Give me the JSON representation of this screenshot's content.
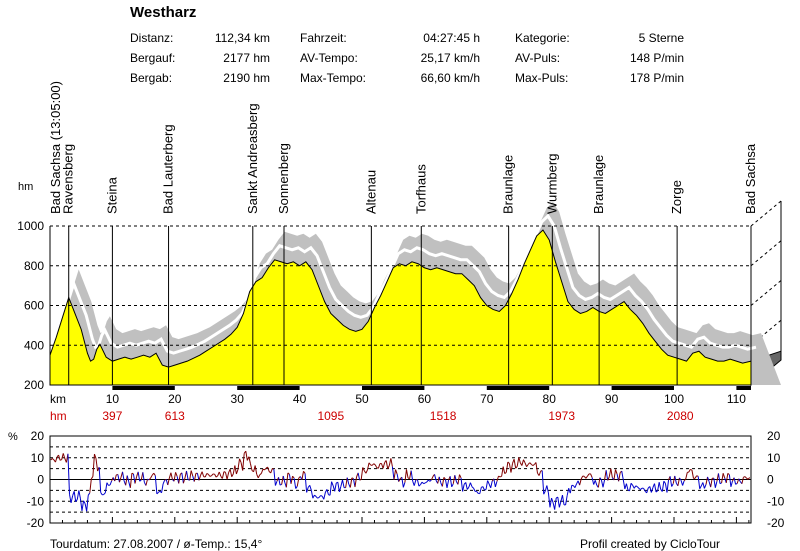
{
  "title": "Westharz",
  "stats": [
    {
      "label": "Distanz:",
      "value": "112,34 km"
    },
    {
      "label": "Bergauf:",
      "value": "2177 hm"
    },
    {
      "label": "Bergab:",
      "value": "2190 hm"
    },
    {
      "label": "Fahrzeit:",
      "value": "04:27:45 h"
    },
    {
      "label": "AV-Tempo:",
      "value": "25,17 km/h"
    },
    {
      "label": "Max-Tempo:",
      "value": "66,60 km/h"
    },
    {
      "label": "Kategorie:",
      "value": "5 Sterne"
    },
    {
      "label": "AV-Puls:",
      "value": "148 P/min"
    },
    {
      "label": "Max-Puls:",
      "value": "178 P/min"
    }
  ],
  "footer": {
    "left": "Tourdatum: 27.08.2007  /  ø-Temp.: 15,4°",
    "right": "Profil created by CicloTour"
  },
  "colors": {
    "profile_fill": "#ffff00",
    "shadow": "#c0c0c0",
    "climb": "#800000",
    "descent": "#0000cc",
    "ascent_label": "#cc0000"
  },
  "chart_data": [
    {
      "type": "area",
      "ylabel": "hm",
      "xlabel": "km",
      "xlim": [
        0,
        112.34
      ],
      "ylim": [
        200,
        1000
      ],
      "x_ticks": [
        10,
        20,
        30,
        40,
        50,
        60,
        70,
        80,
        90,
        100,
        110
      ],
      "y_ticks": [
        200,
        400,
        600,
        800,
        1000
      ],
      "ascent_row_label": "hm",
      "cumulative_ascent": [
        {
          "km": 10,
          "label": "397"
        },
        {
          "km": 20,
          "label": "613"
        },
        {
          "km": 45,
          "label": "1095"
        },
        {
          "km": 63,
          "label": "1518"
        },
        {
          "km": 82,
          "label": "1973"
        },
        {
          "km": 101,
          "label": "2080"
        }
      ],
      "waypoints": [
        {
          "km": 0,
          "name": "Bad Sachsa (13:05:00)"
        },
        {
          "km": 3,
          "name": "Ravensberg"
        },
        {
          "km": 10,
          "name": "Steina"
        },
        {
          "km": 19,
          "name": "Bad Lauterberg"
        },
        {
          "km": 32.5,
          "name": "Sankt Andreasberg"
        },
        {
          "km": 37.5,
          "name": "Sonnenberg"
        },
        {
          "km": 51.5,
          "name": "Altenau"
        },
        {
          "km": 59.5,
          "name": "Torfhaus"
        },
        {
          "km": 73.5,
          "name": "Braunlage"
        },
        {
          "km": 80.5,
          "name": "Wurmberg"
        },
        {
          "km": 88,
          "name": "Braunlage"
        },
        {
          "km": 100.5,
          "name": "Zorge"
        },
        {
          "km": 112.34,
          "name": "Bad Sachsa"
        }
      ],
      "x": [
        0,
        1,
        2,
        3,
        4,
        5,
        6,
        6.5,
        7,
        7.5,
        8,
        9,
        10,
        11,
        12,
        13,
        14,
        15,
        16,
        17,
        18,
        19,
        20,
        21,
        22,
        23,
        24,
        25,
        26,
        27,
        28,
        29,
        30,
        31,
        32,
        33,
        34,
        35,
        36,
        37,
        38,
        39,
        40,
        41,
        42,
        43,
        44,
        45,
        46,
        47,
        48,
        49,
        50,
        51,
        52,
        53,
        54,
        55,
        56,
        57,
        58,
        59,
        60,
        61,
        62,
        63,
        64,
        65,
        66,
        67,
        68,
        69,
        70,
        71,
        72,
        73,
        74,
        75,
        76,
        77,
        78,
        79,
        80,
        81,
        82,
        83,
        84,
        85,
        86,
        87,
        88,
        89,
        90,
        91,
        92,
        93,
        94,
        95,
        96,
        97,
        98,
        99,
        100,
        101,
        102,
        103,
        104,
        105,
        106,
        107,
        108,
        109,
        110,
        111,
        112.34
      ],
      "elevation": [
        350,
        440,
        540,
        640,
        560,
        480,
        360,
        320,
        330,
        380,
        405,
        340,
        320,
        330,
        340,
        330,
        340,
        350,
        340,
        360,
        300,
        290,
        300,
        310,
        320,
        335,
        350,
        370,
        390,
        410,
        430,
        455,
        490,
        560,
        670,
        720,
        740,
        790,
        830,
        820,
        810,
        820,
        800,
        820,
        780,
        700,
        620,
        560,
        530,
        500,
        480,
        470,
        480,
        520,
        590,
        650,
        720,
        790,
        810,
        800,
        820,
        810,
        790,
        780,
        790,
        780,
        770,
        760,
        760,
        730,
        700,
        640,
        600,
        580,
        570,
        600,
        660,
        730,
        810,
        880,
        950,
        980,
        930,
        820,
        720,
        620,
        580,
        560,
        570,
        590,
        570,
        560,
        580,
        600,
        620,
        580,
        550,
        510,
        460,
        420,
        380,
        350,
        340,
        330,
        320,
        360,
        370,
        340,
        330,
        320,
        320,
        330,
        320,
        310,
        320,
        330,
        320
      ],
      "shadow_description": "offset grey band behind profile"
    },
    {
      "type": "line",
      "ylabel": "%",
      "xlim": [
        0,
        112.34
      ],
      "ylim": [
        -20,
        20
      ],
      "y_ticks": [
        -20,
        -10,
        0,
        10,
        20
      ],
      "series_colors": {
        "positive": "#800000",
        "negative": "#0000cc"
      },
      "derived_from": "elevation"
    }
  ]
}
